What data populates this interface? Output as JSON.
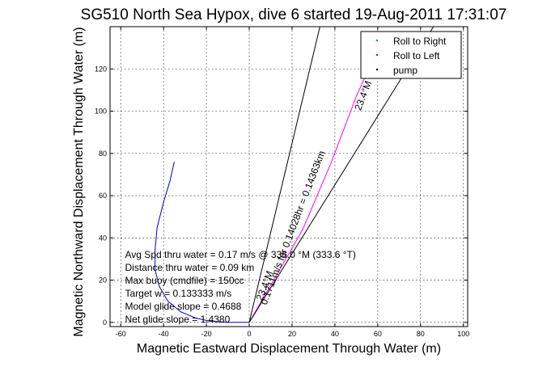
{
  "title": "SG510 North Sea Hypox, dive 6 started 19-Aug-2011 17:31:07",
  "chart_data": {
    "type": "line",
    "title": "SG510 North Sea Hypox, dive 6 started 19-Aug-2011 17:31:07",
    "xlabel": "Magnetic Eastward Displacement Through Water (m)",
    "ylabel": "Magnetic Northward Displacement Through Water (m)",
    "xlim": [
      -65,
      102
    ],
    "ylim": [
      -2,
      140
    ],
    "xticks": [
      -60,
      -40,
      -20,
      0,
      20,
      40,
      60,
      80,
      100
    ],
    "yticks": [
      0,
      20,
      40,
      60,
      80,
      100,
      120
    ],
    "grid": true,
    "legend": {
      "placement": "top-right",
      "entries": [
        {
          "label": "Roll to Right",
          "color": "#00aa00",
          "marker": "."
        },
        {
          "label": "Roll to Left",
          "color": "#ff0000",
          "marker": "."
        },
        {
          "label": "pump",
          "color": "#000000",
          "marker": "."
        }
      ]
    },
    "series": [
      {
        "color": "#0000cc",
        "x": [
          -35,
          -37,
          -40,
          -43,
          -44,
          -44,
          -42,
          -38,
          -32,
          -25,
          -18,
          -10,
          -5,
          0
        ],
        "y": [
          76,
          67,
          57,
          45,
          34,
          25,
          17,
          10,
          5,
          2,
          0.5,
          0,
          0,
          0
        ]
      },
      {
        "color": "#ff00ff",
        "x": [
          0,
          12,
          25,
          38,
          50,
          58
        ],
        "y": [
          0,
          21,
          44,
          75,
          107,
          125
        ]
      },
      {
        "color": "#000000",
        "x": [
          0,
          33
        ],
        "y": [
          0,
          140
        ]
      },
      {
        "color": "#000000",
        "x": [
          0,
          86
        ],
        "y": [
          0,
          140
        ]
      }
    ],
    "line_annotations": [
      {
        "text": "0.1711m/s for 0.14028hr = 0.14363km",
        "x": 8,
        "y": 8,
        "angle_deg": -69
      },
      {
        "text": "23.4°M",
        "x": 52,
        "y": 100,
        "angle_deg": -69
      },
      {
        "text": "23.4°M",
        "x": 6,
        "y": 10,
        "angle_deg": -69
      }
    ],
    "annotations": [
      "Avg Spd thru water =  0.17 m/s @ 336.0    °M (333.6 °T)",
      "Distance thru water =  0.09 km",
      "Max buoy (cmdfile) = 150cc",
      "Target w = 0.133333 m/s",
      "Model glide slope = 0.4688",
      "Net glide slope = 1.4380"
    ]
  }
}
